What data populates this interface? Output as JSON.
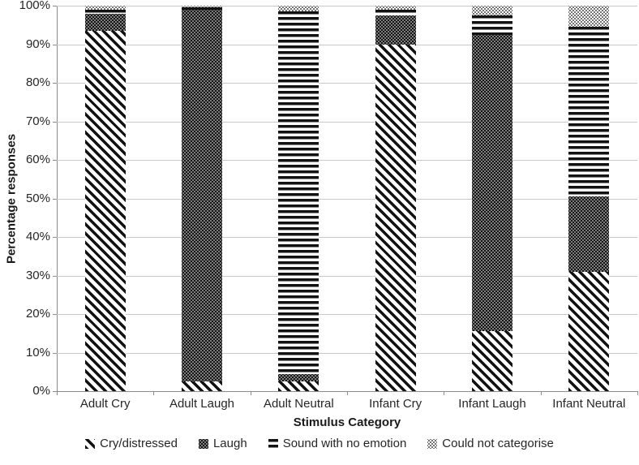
{
  "chart_data": {
    "type": "bar",
    "stacked": true,
    "xlabel": "Stimulus Category",
    "ylabel": "Percentage responses",
    "ylim": [
      0,
      100
    ],
    "grid": true,
    "legend_position": "bottom",
    "categories": [
      "Adult Cry",
      "Adult Laugh",
      "Adult Neutral",
      "Infant Cry",
      "Infant Laugh",
      "Infant Neutral"
    ],
    "yticks": [
      {
        "value": 100,
        "label": "100%"
      },
      {
        "value": 90,
        "label": "90%"
      },
      {
        "value": 80,
        "label": "80%"
      },
      {
        "value": 70,
        "label": "70%"
      },
      {
        "value": 60,
        "label": "60%"
      },
      {
        "value": 50,
        "label": "50%"
      },
      {
        "value": 40,
        "label": "40%"
      },
      {
        "value": 30,
        "label": "30%"
      },
      {
        "value": 20,
        "label": "20%"
      },
      {
        "value": 10,
        "label": "10%"
      },
      {
        "value": 0,
        "label": "0%"
      }
    ],
    "series": [
      {
        "name": "Cry/distressed",
        "pattern": "diagonal-stripes",
        "values": [
          93.5,
          2.5,
          2.5,
          90,
          15.5,
          31
        ]
      },
      {
        "name": "Laugh",
        "pattern": "dark-dots",
        "values": [
          4.5,
          96.5,
          2,
          7.5,
          77,
          19.5
        ]
      },
      {
        "name": "Sound with no emotion",
        "pattern": "horizontal-lines",
        "values": [
          1,
          0.5,
          94,
          1.5,
          5,
          44
        ]
      },
      {
        "name": "Could not categorise",
        "pattern": "light-dots",
        "values": [
          1,
          0.5,
          1.5,
          1,
          2.5,
          5.5
        ]
      }
    ],
    "colors": {
      "pattern_ink": "#121212",
      "background": "#ffffff",
      "gridline": "#c9c9c9",
      "axis": "#8c8c8c",
      "text": "#262626"
    }
  }
}
